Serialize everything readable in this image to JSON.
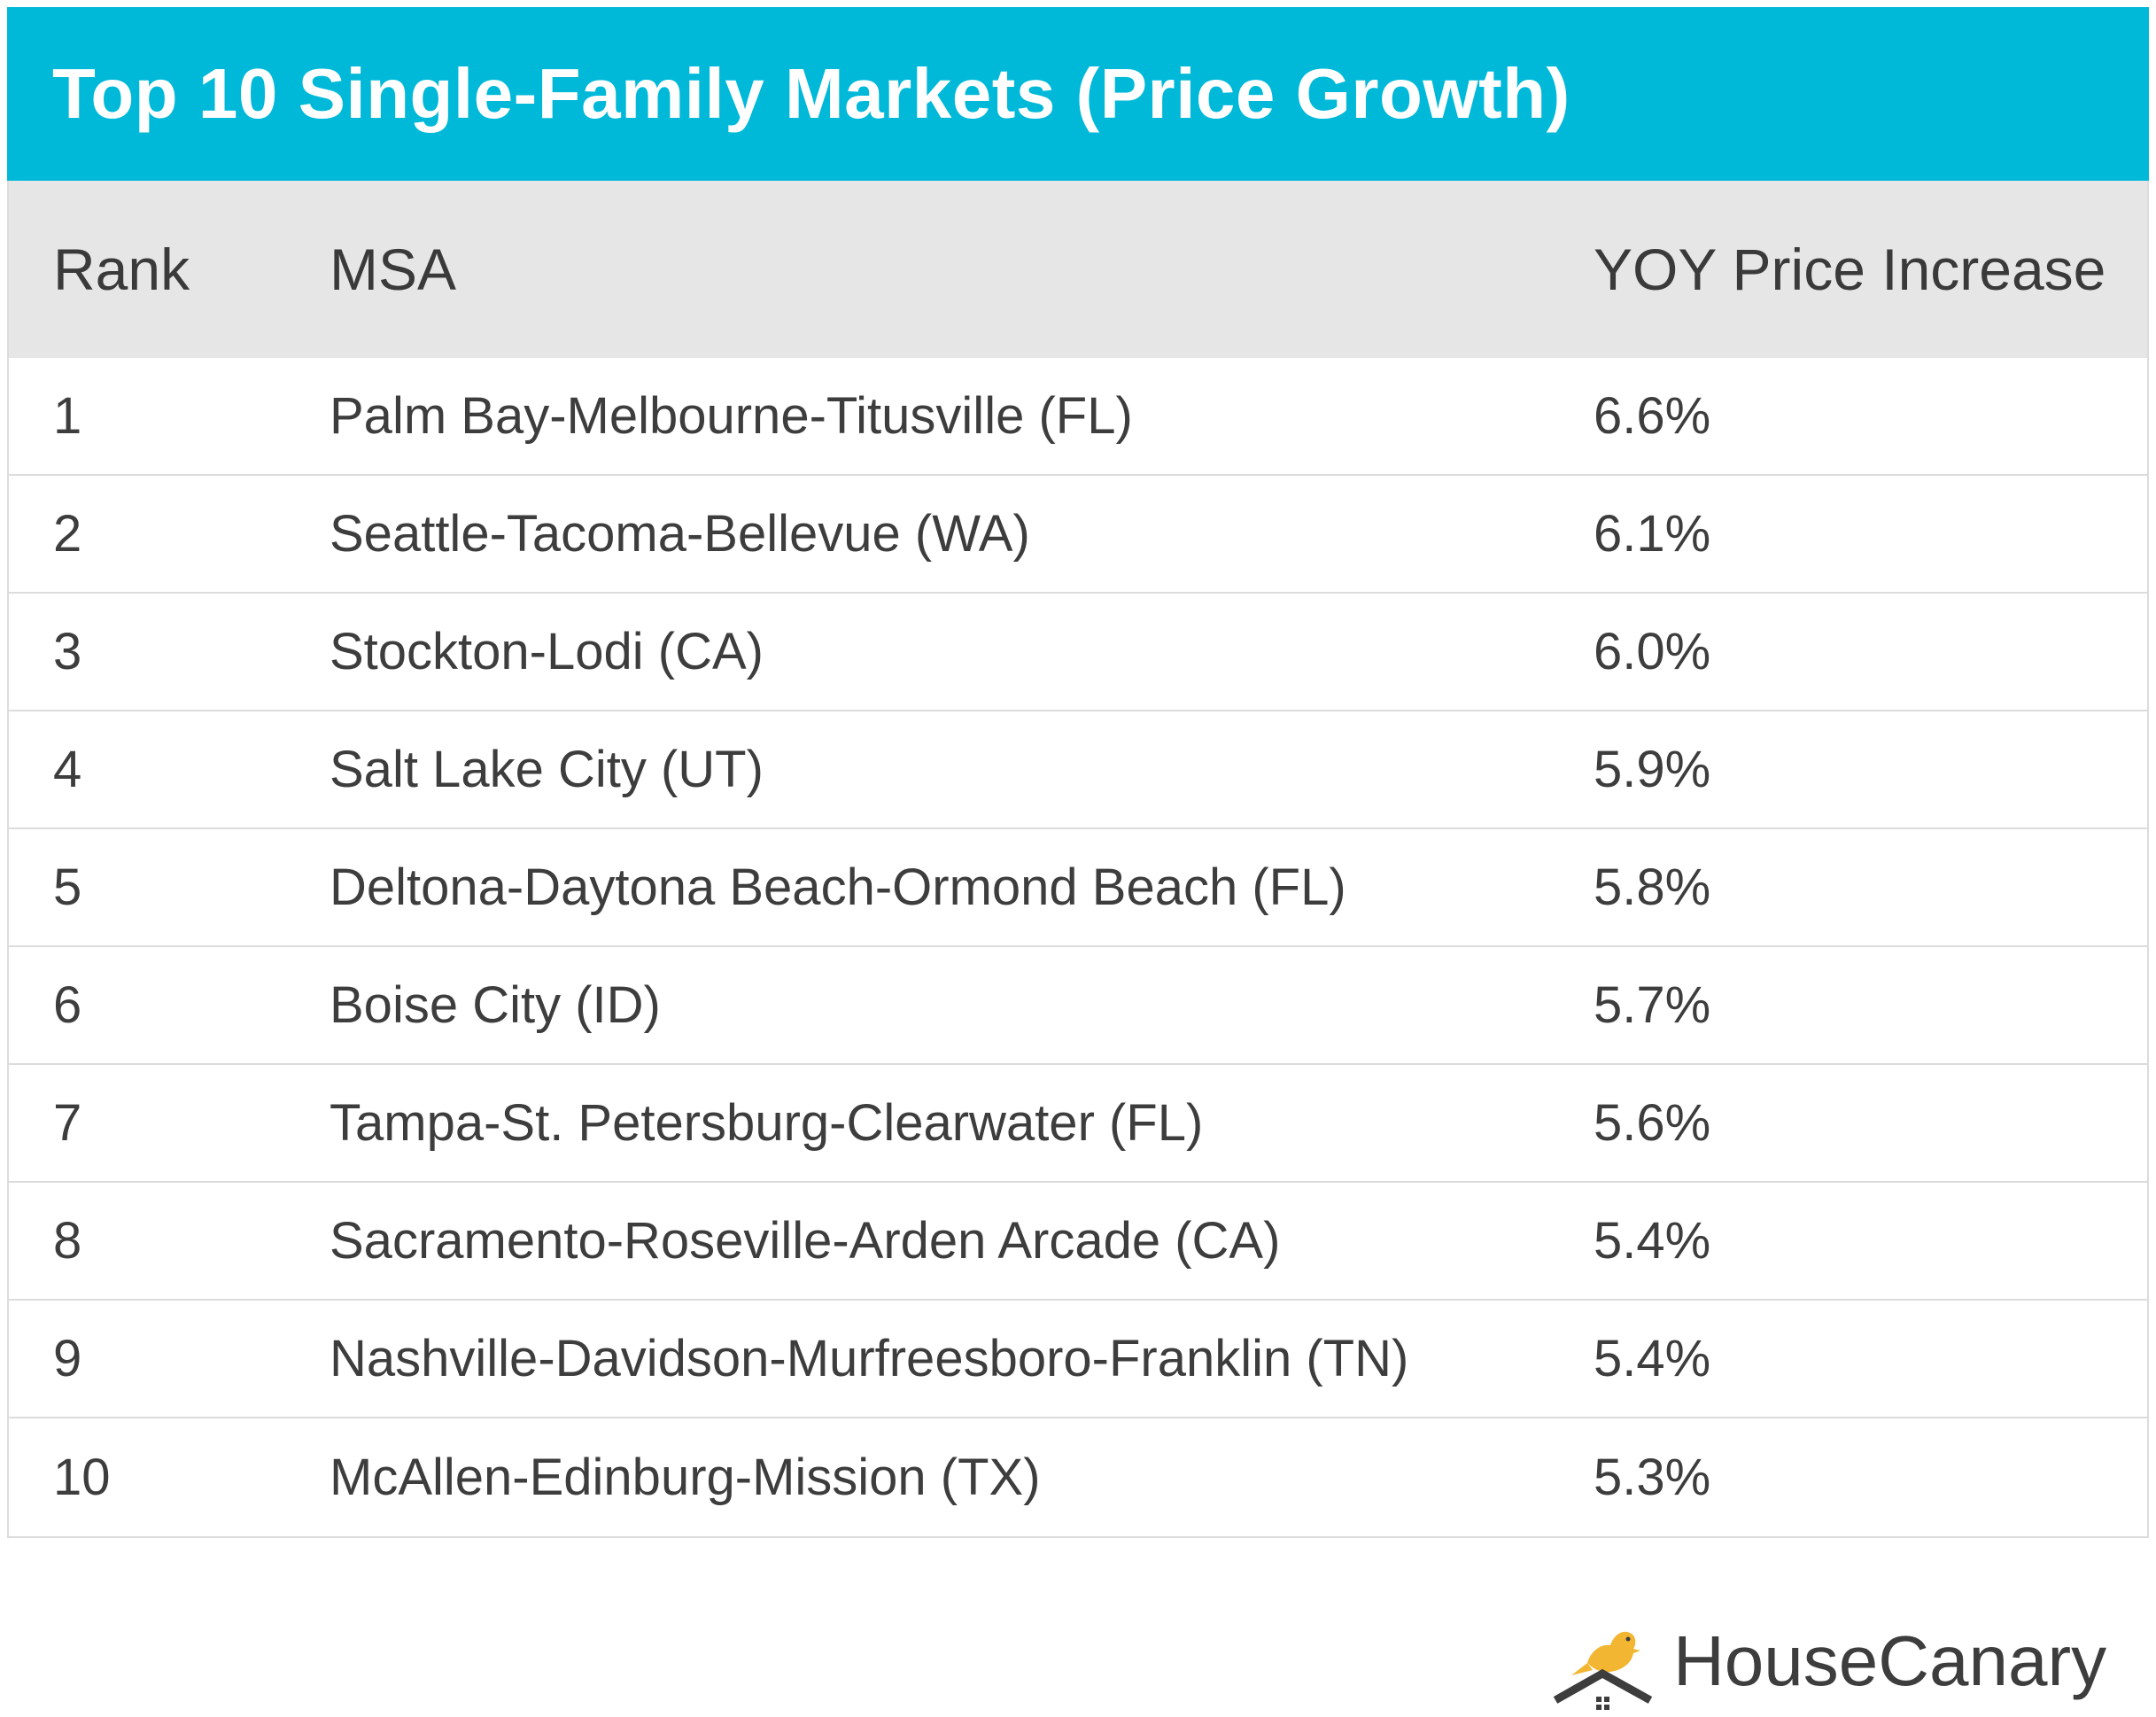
{
  "chart_data": {
    "type": "table",
    "title": "Top 10 Single-Family Markets (Price Growth)",
    "columns": [
      "Rank",
      "MSA",
      "YOY Price Increase"
    ],
    "rows": [
      {
        "rank": "1",
        "msa": "Palm Bay-Melbourne-Titusville (FL)",
        "value": "6.6%"
      },
      {
        "rank": "2",
        "msa": "Seattle-Tacoma-Bellevue (WA)",
        "value": "6.1%"
      },
      {
        "rank": "3",
        "msa": "Stockton-Lodi (CA)",
        "value": "6.0%"
      },
      {
        "rank": "4",
        "msa": "Salt Lake City (UT)",
        "value": "5.9%"
      },
      {
        "rank": "5",
        "msa": "Deltona-Daytona Beach-Ormond Beach (FL)",
        "value": "5.8%"
      },
      {
        "rank": "6",
        "msa": "Boise City (ID)",
        "value": "5.7%"
      },
      {
        "rank": "7",
        "msa": "Tampa-St. Petersburg-Clearwater (FL)",
        "value": "5.6%"
      },
      {
        "rank": "8",
        "msa": "Sacramento-Roseville-Arden Arcade (CA)",
        "value": "5.4%"
      },
      {
        "rank": "9",
        "msa": "Nashville-Davidson-Murfreesboro-Franklin (TN)",
        "value": "5.4%"
      },
      {
        "rank": "10",
        "msa": "McAllen-Edinburg-Mission (TX)",
        "value": "5.3%"
      }
    ]
  },
  "colors": {
    "title_bar": "#00b9d9",
    "header_bg": "#e6e6e6",
    "grid": "#dcdcdc",
    "logo_bird": "#f2b632",
    "logo_house": "#3d3d3d"
  },
  "logo": {
    "icon": "canary-house-icon",
    "text": "HouseCanary"
  }
}
